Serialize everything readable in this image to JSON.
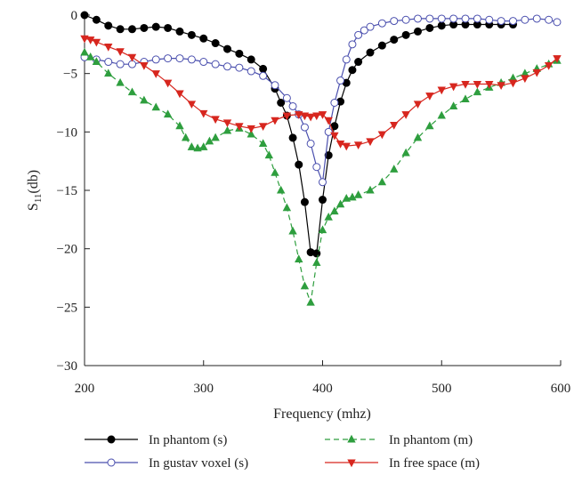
{
  "chart_data": {
    "type": "line",
    "title": "",
    "xlabel": "Frequency (mhz)",
    "ylabel": {
      "base": "S",
      "sub": "11",
      "suffix": "(db)"
    },
    "xlim": [
      200,
      600
    ],
    "ylim": [
      -30,
      0
    ],
    "xticks": [
      200,
      300,
      400,
      500,
      600
    ],
    "yticks": [
      0,
      -5,
      -10,
      -15,
      -20,
      -25,
      -30
    ],
    "xtick_labels": [
      "200",
      "300",
      "400",
      "500",
      "600"
    ],
    "ytick_labels": [
      "0",
      "−5",
      "−10",
      "−15",
      "−20",
      "−25",
      "−30"
    ],
    "grid": false,
    "legend_position": "bottom",
    "series": [
      {
        "name": "In phantom (s)",
        "color": "#000000",
        "marker": "circle-filled",
        "line_style": "solid",
        "x": [
          200,
          210,
          220,
          230,
          240,
          250,
          260,
          270,
          280,
          290,
          300,
          310,
          320,
          330,
          340,
          350,
          360,
          365,
          370,
          375,
          380,
          385,
          390,
          395,
          400,
          405,
          410,
          415,
          420,
          425,
          430,
          440,
          450,
          460,
          470,
          480,
          490,
          500,
          510,
          520,
          530,
          540,
          550,
          560
        ],
        "y": [
          0,
          -0.4,
          -0.9,
          -1.2,
          -1.2,
          -1.1,
          -1.0,
          -1.1,
          -1.4,
          -1.7,
          -2.0,
          -2.4,
          -2.9,
          -3.3,
          -3.8,
          -4.6,
          -6.3,
          -7.5,
          -8.6,
          -10.5,
          -12.8,
          -16.0,
          -20.3,
          -20.4,
          -15.8,
          -12.0,
          -9.5,
          -7.4,
          -5.8,
          -4.7,
          -4.0,
          -3.2,
          -2.6,
          -2.1,
          -1.7,
          -1.4,
          -1.1,
          -0.9,
          -0.8,
          -0.8,
          -0.8,
          -0.8,
          -0.8,
          -0.8
        ]
      },
      {
        "name": "In gustav voxel (s)",
        "color": "#4a4fae",
        "marker": "circle-open",
        "line_style": "solid",
        "x": [
          200,
          210,
          220,
          230,
          240,
          250,
          260,
          270,
          280,
          290,
          300,
          310,
          320,
          330,
          340,
          350,
          360,
          370,
          375,
          380,
          385,
          390,
          395,
          400,
          405,
          410,
          415,
          420,
          425,
          430,
          435,
          440,
          450,
          460,
          470,
          480,
          490,
          500,
          510,
          520,
          530,
          540,
          550,
          560,
          570,
          580,
          590,
          597
        ],
        "y": [
          -3.6,
          -3.8,
          -4.0,
          -4.2,
          -4.2,
          -4.0,
          -3.8,
          -3.7,
          -3.7,
          -3.8,
          -4.0,
          -4.2,
          -4.4,
          -4.5,
          -4.8,
          -5.2,
          -6.0,
          -7.1,
          -7.8,
          -8.5,
          -9.6,
          -11.0,
          -13.0,
          -14.3,
          -10.0,
          -7.5,
          -5.6,
          -3.8,
          -2.5,
          -1.7,
          -1.3,
          -1.0,
          -0.7,
          -0.5,
          -0.4,
          -0.3,
          -0.3,
          -0.3,
          -0.3,
          -0.3,
          -0.3,
          -0.4,
          -0.5,
          -0.5,
          -0.4,
          -0.3,
          -0.4,
          -0.6
        ]
      },
      {
        "name": "In phantom (m)",
        "color": "#2e9e3e",
        "marker": "triangle-up",
        "line_style": "dashed",
        "x": [
          200,
          205,
          210,
          220,
          230,
          240,
          250,
          260,
          270,
          280,
          285,
          290,
          295,
          300,
          305,
          310,
          320,
          330,
          340,
          350,
          355,
          360,
          365,
          370,
          375,
          380,
          385,
          390,
          395,
          400,
          405,
          410,
          415,
          420,
          425,
          430,
          440,
          450,
          460,
          470,
          480,
          490,
          500,
          510,
          520,
          530,
          540,
          550,
          560,
          570,
          580,
          590,
          597
        ],
        "y": [
          -3.2,
          -3.6,
          -4.0,
          -5.0,
          -5.8,
          -6.6,
          -7.3,
          -7.9,
          -8.5,
          -9.5,
          -10.5,
          -11.3,
          -11.4,
          -11.3,
          -10.8,
          -10.5,
          -9.9,
          -9.7,
          -10.2,
          -11.0,
          -12.0,
          -13.5,
          -15.0,
          -16.5,
          -18.5,
          -20.9,
          -23.2,
          -24.6,
          -21.2,
          -18.4,
          -17.3,
          -16.8,
          -16.2,
          -15.7,
          -15.6,
          -15.4,
          -15.0,
          -14.3,
          -13.2,
          -11.8,
          -10.5,
          -9.5,
          -8.6,
          -7.8,
          -7.2,
          -6.6,
          -6.2,
          -5.8,
          -5.4,
          -5.0,
          -4.6,
          -4.2,
          -3.9
        ]
      },
      {
        "name": "In free space (m)",
        "color": "#d7261e",
        "marker": "triangle-down",
        "line_style": "solid",
        "x": [
          200,
          205,
          210,
          220,
          230,
          240,
          250,
          260,
          270,
          280,
          290,
          300,
          310,
          320,
          330,
          340,
          350,
          360,
          370,
          380,
          385,
          390,
          395,
          400,
          405,
          410,
          415,
          420,
          430,
          440,
          450,
          460,
          470,
          480,
          490,
          500,
          510,
          520,
          530,
          540,
          550,
          560,
          570,
          580,
          590,
          597
        ],
        "y": [
          -2.0,
          -2.1,
          -2.3,
          -2.7,
          -3.1,
          -3.6,
          -4.3,
          -5.0,
          -5.8,
          -6.7,
          -7.6,
          -8.4,
          -8.9,
          -9.2,
          -9.5,
          -9.7,
          -9.5,
          -9.0,
          -8.6,
          -8.5,
          -8.6,
          -8.7,
          -8.6,
          -8.5,
          -9.0,
          -10.3,
          -11.0,
          -11.2,
          -11.1,
          -10.8,
          -10.2,
          -9.4,
          -8.5,
          -7.6,
          -6.9,
          -6.4,
          -6.1,
          -5.9,
          -5.9,
          -5.9,
          -6.0,
          -5.8,
          -5.4,
          -4.9,
          -4.3,
          -3.7
        ]
      }
    ]
  }
}
